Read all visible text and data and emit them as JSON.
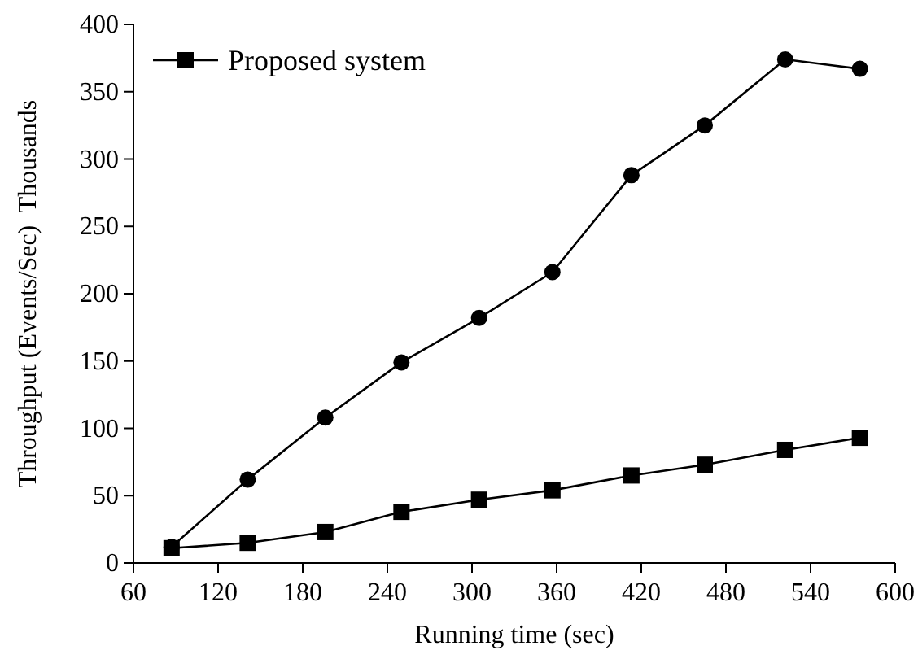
{
  "chart_data": {
    "type": "line",
    "xlabel": "Running time (sec)",
    "ylabel": "Throughput (Events/Sec)  Thousands",
    "x": [
      87,
      141,
      196,
      250,
      305,
      357,
      413,
      465,
      522,
      575
    ],
    "series": [
      {
        "color": "#000000",
        "marker": "circle",
        "values": [
          12,
          62,
          108,
          149,
          182,
          216,
          288,
          325,
          374,
          367
        ]
      },
      {
        "name": "Proposed system",
        "color": "#000000",
        "marker": "square",
        "values": [
          11,
          15,
          23,
          38,
          47,
          54,
          65,
          73,
          84,
          93
        ]
      }
    ],
    "xlim": [
      60,
      600
    ],
    "xticks": [
      60,
      120,
      180,
      240,
      300,
      360,
      420,
      480,
      540,
      600
    ],
    "ylim": [
      0,
      400
    ],
    "yticks": [
      0,
      50,
      100,
      150,
      200,
      250,
      300,
      350,
      400
    ],
    "grid": false,
    "legend": "top left",
    "line_style": "solid"
  }
}
